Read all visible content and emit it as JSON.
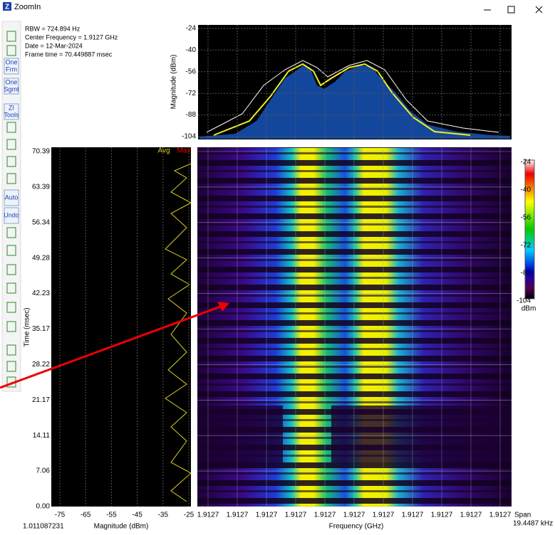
{
  "window": {
    "icon": "Z",
    "title": "ZoomIn"
  },
  "info": [
    "RBW = 724.894 Hz",
    "Center Frequency = 1.9127 GHz",
    "Date = 12-Mar-2024",
    "Frame time = 70.449887 msec"
  ],
  "toolbar": {
    "buttons": [
      [
        "One",
        "Frm"
      ],
      [
        "One",
        "Sgmt"
      ],
      [
        "ZI",
        "Tools"
      ],
      [
        "Auto"
      ],
      [
        "Undo"
      ]
    ]
  },
  "spectrum": {
    "y_label": "Magnitude (dBm)",
    "yticks": [
      "-24",
      "-40",
      "-56",
      "-72",
      "-88",
      "-104"
    ]
  },
  "time_plot": {
    "y_label": "Time (msec)",
    "yticks": [
      "70.39",
      "63.39",
      "56.34",
      "49.28",
      "42.23",
      "35.17",
      "28.22",
      "21.17",
      "14.11",
      "7.06",
      "0.00"
    ],
    "x_label": "Magnitude (dBm)",
    "xticks": [
      "-75",
      "-65",
      "-55",
      "-45",
      "-35",
      "-25"
    ],
    "legend": [
      "Avg",
      "Max"
    ],
    "corner_value": "1.011087231"
  },
  "spectrogram": {
    "x_label": "Frequency (GHz)",
    "xticks": [
      "1.9127",
      "1.9127",
      "1.9127",
      "1.9127",
      "1.9127",
      "1.9127",
      "1.9127",
      "1.9127",
      "1.9127",
      "1.9127",
      "1.9127"
    ],
    "span_label": "Span",
    "span_value": "19.4487 kHz"
  },
  "colorbar": {
    "ticks": [
      "-24",
      "-40",
      "-56",
      "-72",
      "-88",
      "-104"
    ],
    "unit": "dBm"
  }
}
